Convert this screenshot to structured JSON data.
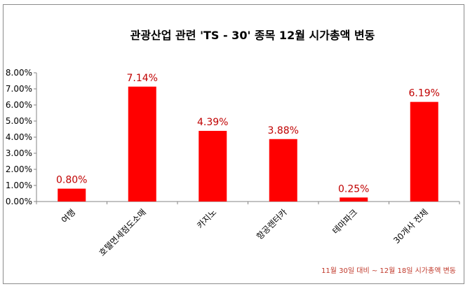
{
  "chart_data": {
    "type": "bar",
    "title": "관광산업  관련  'TS - 30' 종목 12월 시가총액 변동",
    "categories": [
      "여행",
      "호텔면세점도소매",
      "카지노",
      "항공렌터카",
      "테마파크",
      "30개사 전체"
    ],
    "values": [
      0.8,
      7.14,
      4.39,
      3.88,
      0.25,
      6.19
    ],
    "data_labels": [
      "0.80%",
      "7.14%",
      "4.39%",
      "3.88%",
      "0.25%",
      "6.19%"
    ],
    "yticks": [
      "0.00%",
      "1.00%",
      "2.00%",
      "3.00%",
      "4.00%",
      "5.00%",
      "6.00%",
      "7.00%",
      "8.00%"
    ],
    "ylim": [
      0,
      8
    ],
    "unit": "%",
    "grid": false,
    "bar_color": "#ff0000",
    "label_color": "#c00000",
    "note": "11월 30일 대비 ~ 12월 18일 시가총액 변동"
  }
}
